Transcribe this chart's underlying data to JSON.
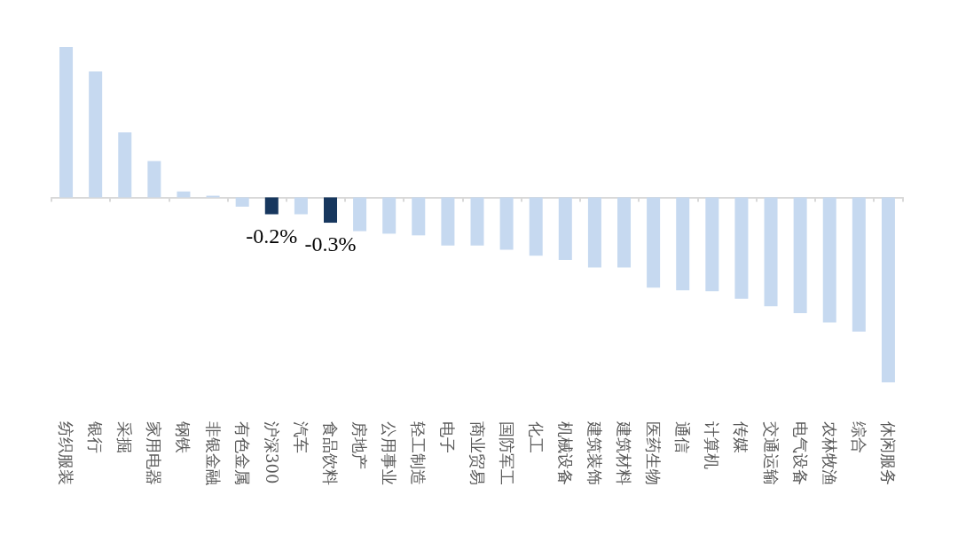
{
  "chart_data": {
    "type": "bar",
    "categories": [
      "纺织服装",
      "银行",
      "采掘",
      "家用电器",
      "钢铁",
      "非银金融",
      "有色金属",
      "沪深300",
      "汽车",
      "食品饮料",
      "房地产",
      "公用事业",
      "轻工制造",
      "电子",
      "商业贸易",
      "国防军工",
      "化工",
      "机械设备",
      "建筑装饰",
      "建筑材料",
      "医药生物",
      "通信",
      "计算机",
      "传媒",
      "交通运输",
      "电气设备",
      "农林牧渔",
      "综合",
      "休闲服务"
    ],
    "values": [
      1.78,
      1.49,
      0.77,
      0.43,
      0.07,
      0.02,
      -0.11,
      -0.2,
      -0.2,
      -0.3,
      -0.4,
      -0.43,
      -0.45,
      -0.57,
      -0.57,
      -0.62,
      -0.69,
      -0.74,
      -0.83,
      -0.83,
      -1.07,
      -1.1,
      -1.11,
      -1.2,
      -1.29,
      -1.37,
      -1.48,
      -1.59,
      -2.19
    ],
    "colors": [
      "#c6d9f0",
      "#c6d9f0",
      "#c6d9f0",
      "#c6d9f0",
      "#c6d9f0",
      "#c6d9f0",
      "#c6d9f0",
      "#17375e",
      "#c6d9f0",
      "#17375e",
      "#c6d9f0",
      "#c6d9f0",
      "#c6d9f0",
      "#c6d9f0",
      "#c6d9f0",
      "#c6d9f0",
      "#c6d9f0",
      "#c6d9f0",
      "#c6d9f0",
      "#c6d9f0",
      "#c6d9f0",
      "#c6d9f0",
      "#c6d9f0",
      "#c6d9f0",
      "#c6d9f0",
      "#c6d9f0",
      "#c6d9f0",
      "#c6d9f0",
      "#c6d9f0"
    ],
    "value_labels": [
      null,
      null,
      null,
      null,
      null,
      null,
      null,
      "-0.2%",
      null,
      "-0.3%",
      null,
      null,
      null,
      null,
      null,
      null,
      null,
      null,
      null,
      null,
      null,
      null,
      null,
      null,
      null,
      null,
      null,
      null,
      null
    ],
    "grid": false
  }
}
